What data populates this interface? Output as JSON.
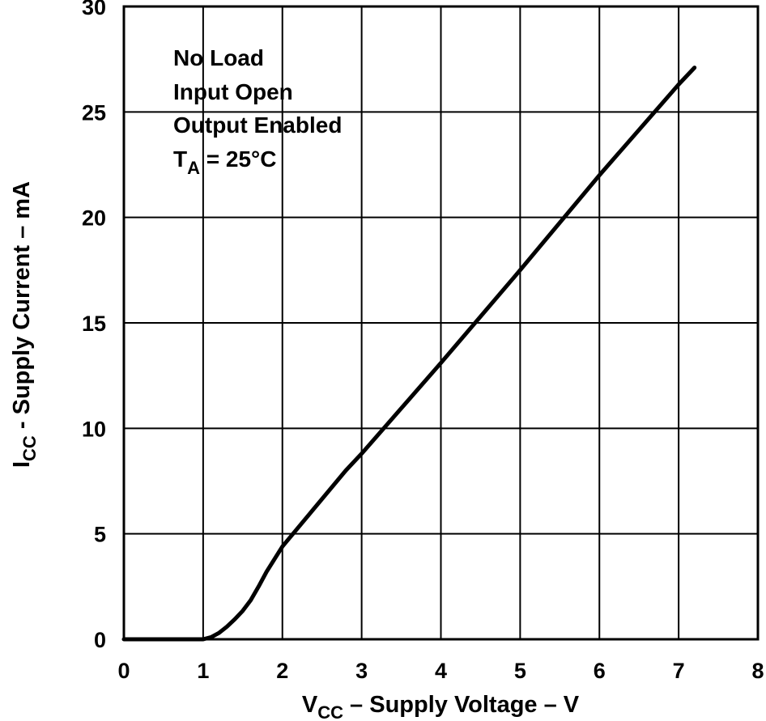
{
  "chart_data": {
    "type": "line",
    "xlabel": {
      "symbol": "V",
      "subscript": "CC",
      "text": " – Supply Voltage – V"
    },
    "ylabel": {
      "symbol": "I",
      "subscript": "CC",
      "text": " - Supply Current – mA"
    },
    "xlim": [
      0,
      8
    ],
    "ylim": [
      0,
      30
    ],
    "x_ticks": [
      "0",
      "1",
      "2",
      "3",
      "4",
      "5",
      "6",
      "7",
      "8"
    ],
    "y_ticks": [
      "0",
      "5",
      "10",
      "15",
      "20",
      "25",
      "30"
    ],
    "grid": true,
    "annotations": [
      "No Load",
      "Input Open",
      "Output Enabled"
    ],
    "condition": {
      "symbol": "T",
      "subscript": "A",
      "text": " = 25°C"
    },
    "series": [
      {
        "x": [
          0,
          0.5,
          1.0,
          1.1,
          1.2,
          1.3,
          1.4,
          1.5,
          1.6,
          1.7,
          1.8,
          2.0,
          2.4,
          2.8,
          3.0,
          4.0,
          5.0,
          6.0,
          7.0,
          7.2
        ],
        "y": [
          0,
          0,
          0,
          0.1,
          0.3,
          0.6,
          0.95,
          1.35,
          1.85,
          2.5,
          3.2,
          4.4,
          6.2,
          8.0,
          8.8,
          13.1,
          17.5,
          22.0,
          26.3,
          27.1
        ]
      }
    ]
  }
}
